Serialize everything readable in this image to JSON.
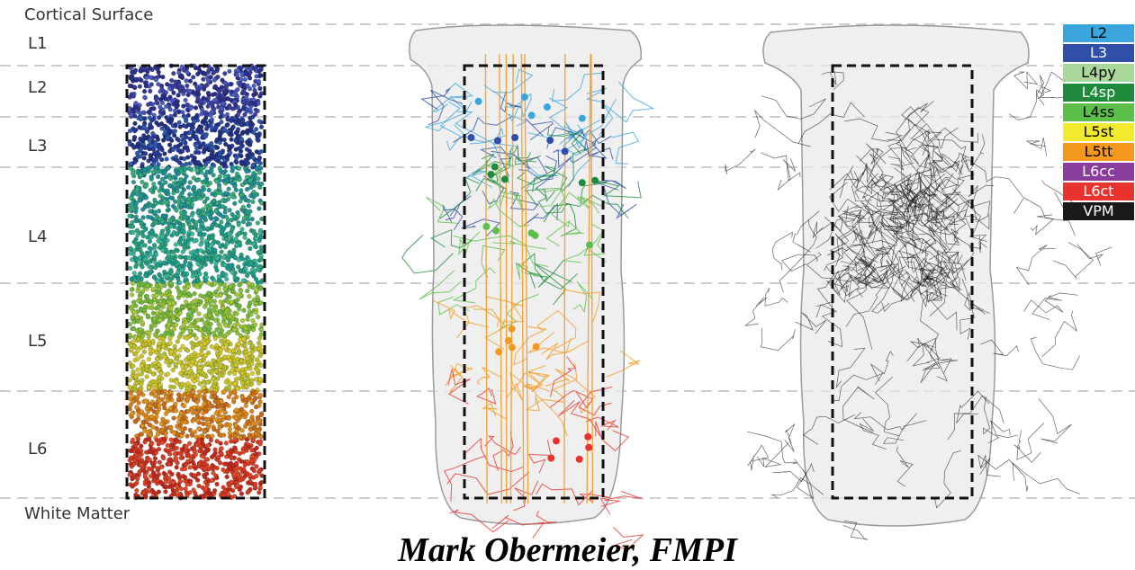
{
  "layers": {
    "surface": "Cortical Surface",
    "l1": "L1",
    "l2": "L2",
    "l3": "L3",
    "l4": "L4",
    "l5": "L5",
    "l6": "L6",
    "white_matter": "White Matter"
  },
  "legend": [
    {
      "label": "L2",
      "color": "#3aa6dd",
      "text_color": "#000000"
    },
    {
      "label": "L3",
      "color": "#2f4fa8",
      "text_color": "#ffffff"
    },
    {
      "label": "L4py",
      "color": "#a8d89a",
      "text_color": "#000000"
    },
    {
      "label": "L4sp",
      "color": "#1e8a3c",
      "text_color": "#ffffff"
    },
    {
      "label": "L4ss",
      "color": "#5cbf4a",
      "text_color": "#000000"
    },
    {
      "label": "L5st",
      "color": "#f2ea2c",
      "text_color": "#000000"
    },
    {
      "label": "L5tt",
      "color": "#f4981e",
      "text_color": "#000000"
    },
    {
      "label": "L6cc",
      "color": "#8a3c9e",
      "text_color": "#ffffff"
    },
    {
      "label": "L6ct",
      "color": "#e8332e",
      "text_color": "#ffffff"
    },
    {
      "label": "VPM",
      "color": "#1a1a1a",
      "text_color": "#ffffff"
    }
  ],
  "credit": "Mark Obermeier, FMPI"
}
